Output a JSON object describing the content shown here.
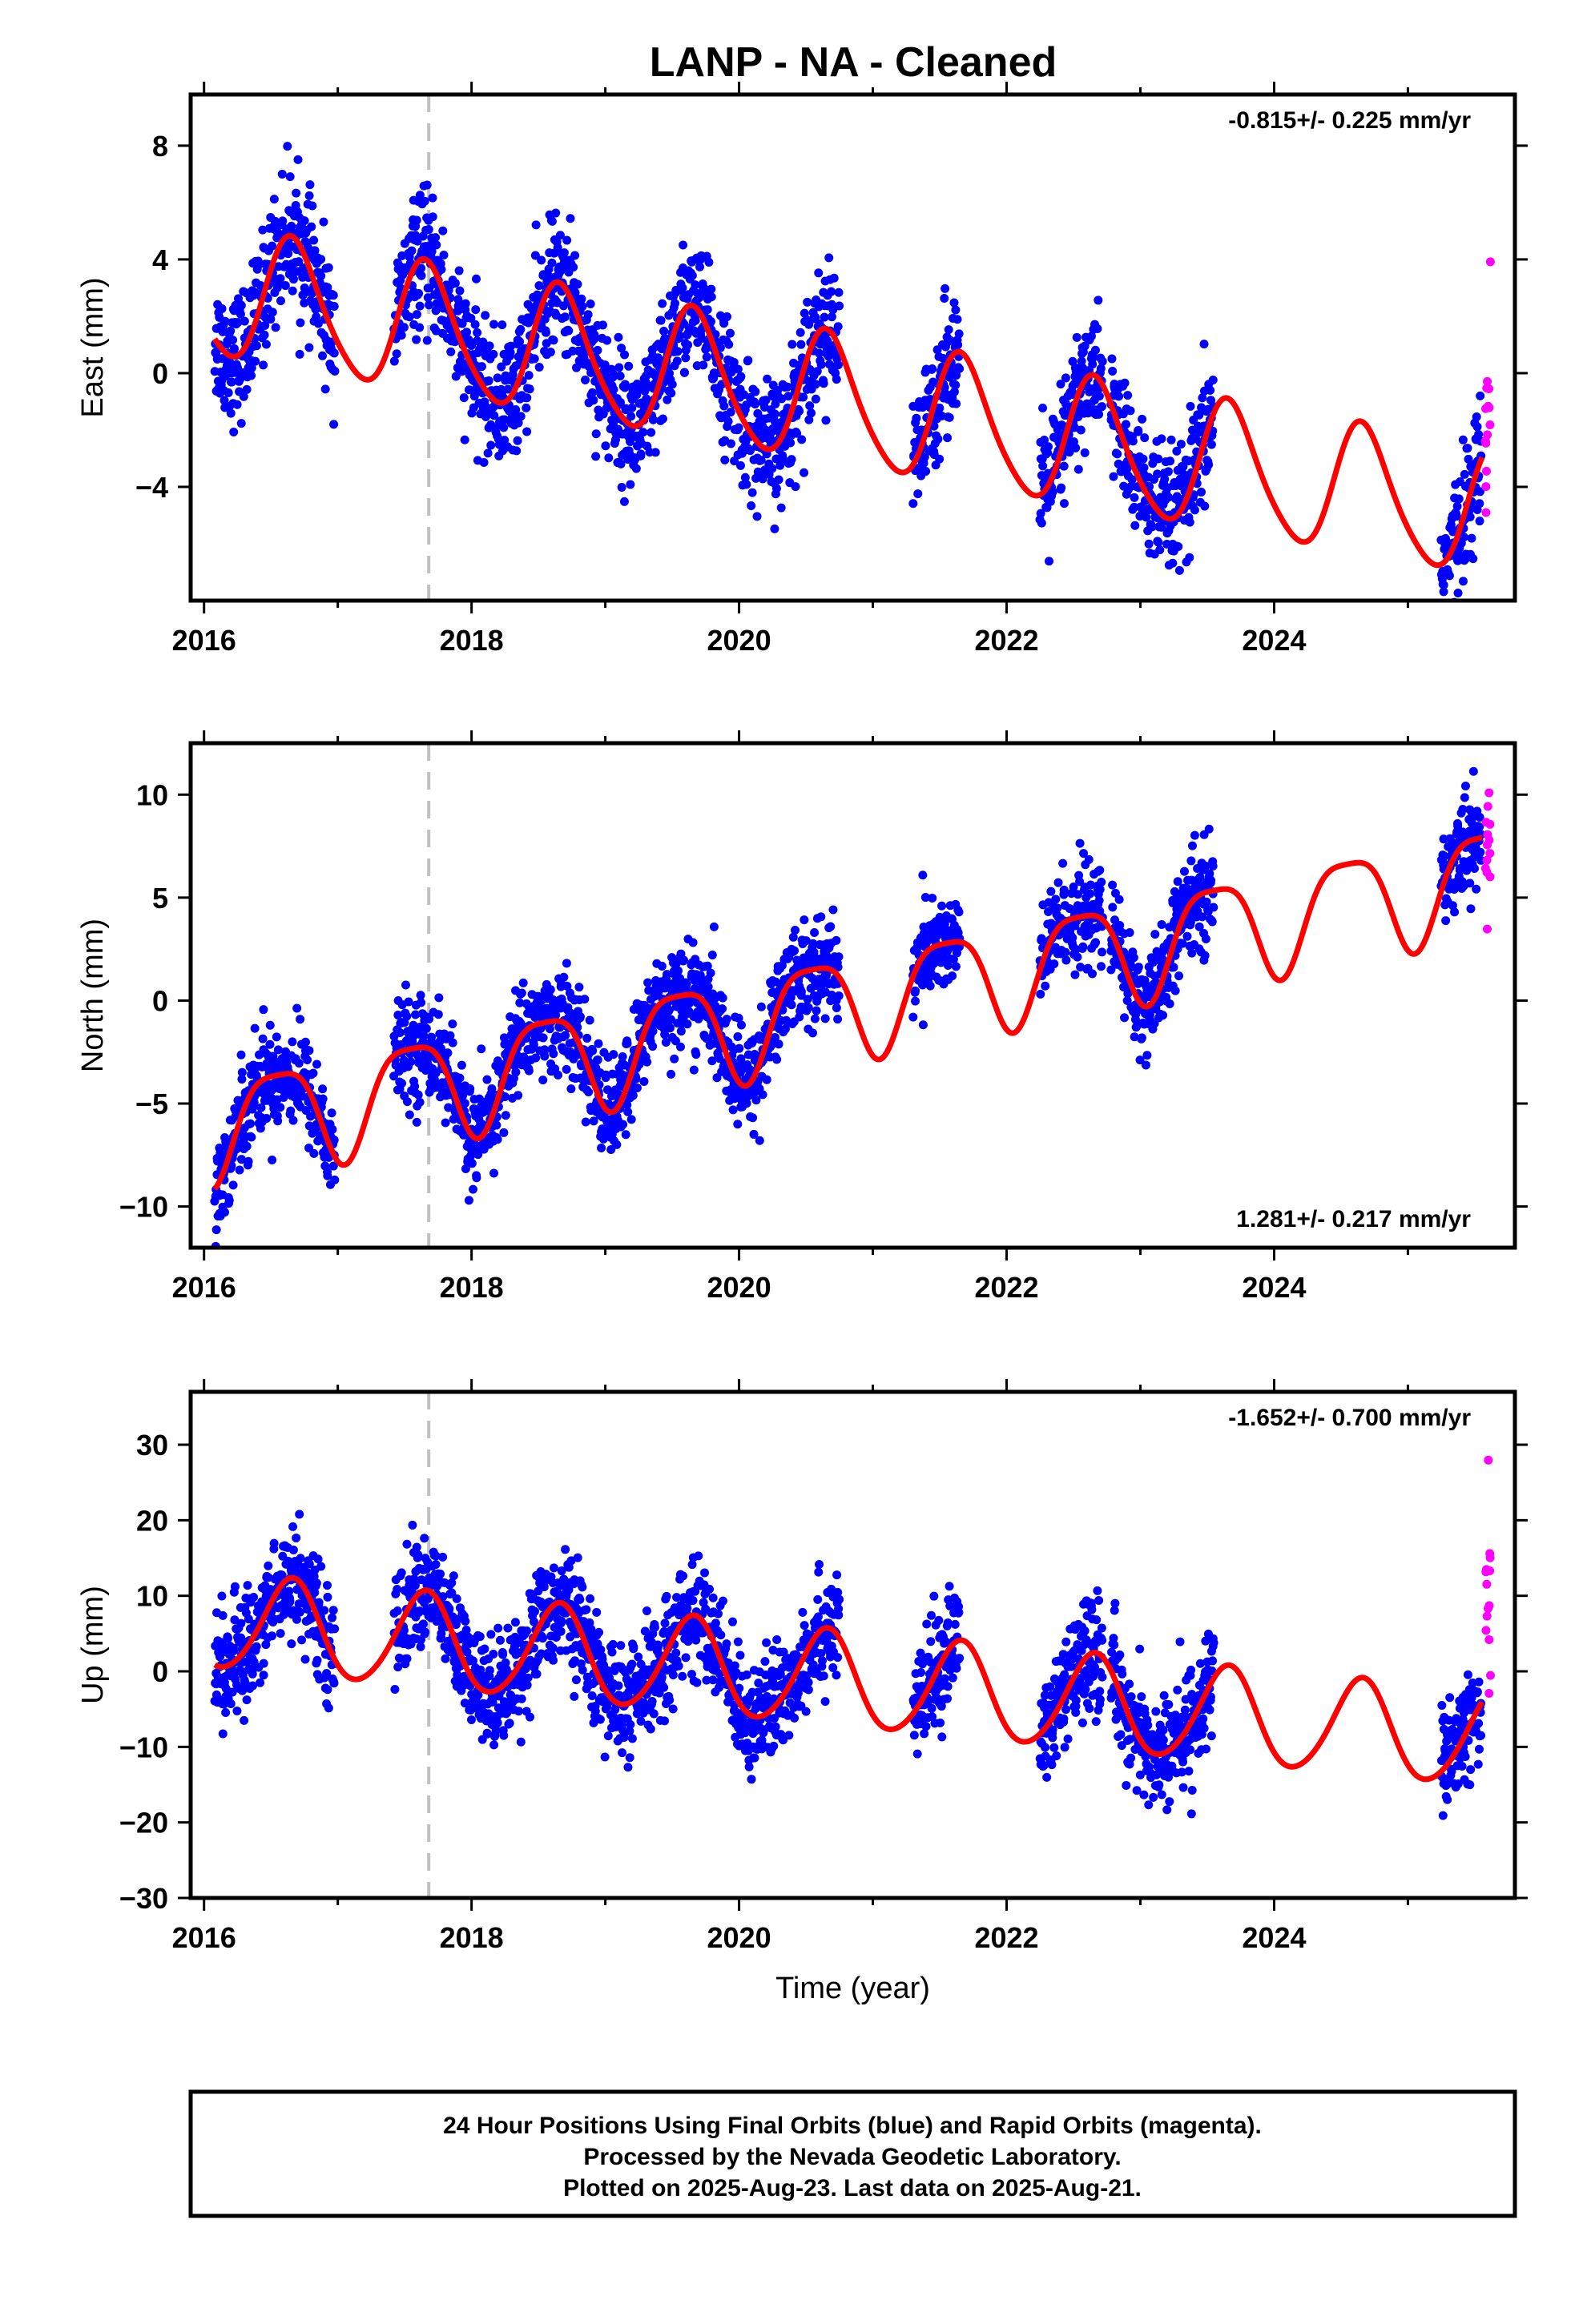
{
  "title": "LANP  - NA - Cleaned",
  "footer": {
    "line1": "24 Hour Positions Using Final Orbits (blue) and Rapid Orbits (magenta).",
    "line2": "Processed by the Nevada Geodetic Laboratory.",
    "line3": "Plotted on 2025-Aug-23. Last data on 2025-Aug-21."
  },
  "colors": {
    "final_orbits": "#0000ff",
    "rapid_orbits": "#ff00ff",
    "model": "#ff0000",
    "equipment_change": "#c0c0c0",
    "axes": "#000000"
  },
  "chart_data": [
    {
      "type": "scatter",
      "xlabel": "",
      "ylabel": "East (mm)",
      "xlim": [
        2015.9,
        2025.8
      ],
      "ylim": [
        -8.0,
        9.8
      ],
      "xticks": [
        2016,
        2018,
        2020,
        2022,
        2024
      ],
      "yticks": [
        -4,
        0,
        4,
        8
      ],
      "grid": false,
      "rate": "-0.815+/- 0.225 mm/yr",
      "rate_position": "top-right",
      "equipment_change_year": 2017.68,
      "model": {
        "trend": -0.815,
        "offset": 2.8,
        "annual_amplitude": 2.25,
        "annual_peak": 0.67,
        "semiannual_amplitude": 0.3,
        "semiannual_phase": 0.1
      },
      "data_segments": [
        [
          2016.08,
          2016.98
        ],
        [
          2017.42,
          2020.75
        ],
        [
          2021.3,
          2021.65
        ],
        [
          2022.25,
          2022.72
        ],
        [
          2022.78,
          2023.55
        ],
        [
          2025.25,
          2025.55
        ]
      ],
      "scatter_std": 1.1,
      "rapid_span": [
        2025.58,
        2025.62
      ],
      "rapid_offset": 1.5,
      "rapid_std": 2.8
    },
    {
      "type": "scatter",
      "xlabel": "",
      "ylabel": "North (mm)",
      "xlim": [
        2015.9,
        2025.8
      ],
      "ylim": [
        -12.0,
        12.5
      ],
      "xticks": [
        2016,
        2018,
        2020,
        2022,
        2024
      ],
      "yticks": [
        -10,
        -5,
        0,
        5,
        10
      ],
      "grid": false,
      "rate": "1.281+/- 0.217 mm/yr",
      "rate_position": "bottom-right",
      "equipment_change_year": 2017.68,
      "model": {
        "trend": 1.281,
        "offset": -6.1,
        "annual_amplitude": 2.5,
        "annual_peak": 0.55,
        "semiannual_amplitude": 0.6,
        "semiannual_phase": 0.3
      },
      "data_segments": [
        [
          2016.08,
          2016.98
        ],
        [
          2017.42,
          2020.75
        ],
        [
          2021.3,
          2021.65
        ],
        [
          2022.25,
          2022.72
        ],
        [
          2022.78,
          2023.55
        ],
        [
          2025.25,
          2025.55
        ]
      ],
      "scatter_std": 1.2,
      "rapid_span": [
        2025.58,
        2025.62
      ],
      "rapid_offset": -1.0,
      "rapid_std": 2.5
    },
    {
      "type": "scatter",
      "xlabel": "Time (year)",
      "ylabel": "Up (mm)",
      "xlim": [
        2015.9,
        2025.8
      ],
      "ylim": [
        -30.0,
        37.0
      ],
      "xticks": [
        2016,
        2018,
        2020,
        2022,
        2024
      ],
      "yticks": [
        -30,
        -20,
        -10,
        0,
        10,
        20,
        30
      ],
      "grid": false,
      "rate": "-1.652+/- 0.700 mm/yr",
      "rate_position": "top-right",
      "equipment_change_year": 2017.68,
      "model": {
        "trend": -1.652,
        "offset": 6.5,
        "annual_amplitude": 6.3,
        "annual_peak": 0.65,
        "semiannual_amplitude": 0.6,
        "semiannual_phase": 0.2
      },
      "data_segments": [
        [
          2016.08,
          2016.98
        ],
        [
          2017.42,
          2020.75
        ],
        [
          2021.3,
          2021.65
        ],
        [
          2022.25,
          2022.72
        ],
        [
          2022.78,
          2023.55
        ],
        [
          2025.25,
          2025.55
        ]
      ],
      "scatter_std": 3.6,
      "rapid_span": [
        2025.58,
        2025.62
      ],
      "rapid_offset": 12.0,
      "rapid_std": 8.0
    }
  ]
}
